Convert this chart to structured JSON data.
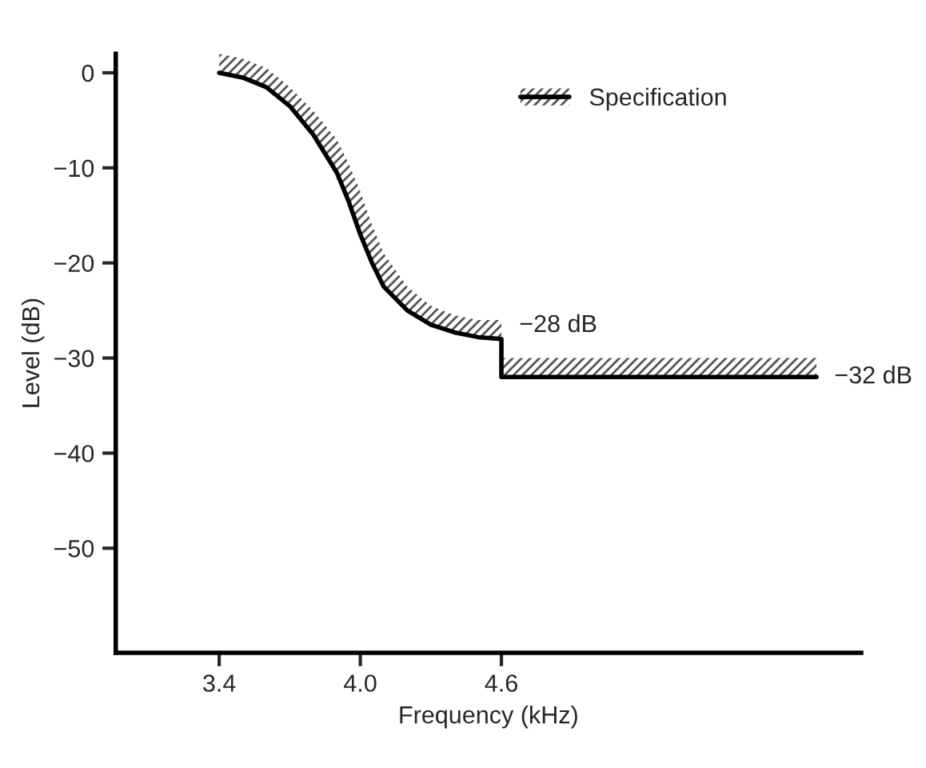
{
  "chart_data": {
    "type": "line",
    "xlabel": "Frequency (kHz)",
    "ylabel": "Level (dB)",
    "x": [
      3.4,
      3.5,
      3.6,
      3.7,
      3.8,
      3.9,
      3.95,
      4.0,
      4.05,
      4.1,
      4.2,
      4.3,
      4.4,
      4.5,
      4.6,
      4.6,
      5.94
    ],
    "series": [
      {
        "name": "Specification",
        "color": "#000000",
        "values": [
          0,
          -0.5,
          -1.5,
          -3.5,
          -6.5,
          -10.5,
          -13.5,
          -17,
          -20,
          -22.5,
          -25,
          -26.5,
          -27.3,
          -27.8,
          -28,
          -32,
          -32
        ],
        "lower": [
          0,
          -0.5,
          -1.5,
          -3.5,
          -6.5,
          -10.5,
          -13.5,
          -17,
          -20,
          -22.5,
          -25,
          -26.5,
          -27.3,
          -27.8,
          -28,
          -32,
          -32
        ],
        "upper": [
          2,
          1.5,
          0.5,
          -1.5,
          -4,
          -7,
          -9.5,
          -12.5,
          -16,
          -19,
          -22.5,
          -24.5,
          -25.5,
          -26,
          -26,
          -30,
          -30
        ]
      }
    ],
    "annotations": [
      {
        "text": "−28 dB",
        "x": 4.6,
        "y": -28
      },
      {
        "text": "−32 dB",
        "x": 5.94,
        "y": -32
      }
    ],
    "xlim": [
      2.96,
      6.13
    ],
    "ylim": [
      -61,
      2
    ],
    "xticks": [
      {
        "value": 3.4,
        "label": "3.4"
      },
      {
        "value": 4.0,
        "label": "4.0"
      },
      {
        "value": 4.6,
        "label": "4.6"
      }
    ],
    "yticks": [
      {
        "value": 0,
        "label": "0"
      },
      {
        "value": -10,
        "label": "−10"
      },
      {
        "value": -20,
        "label": "−20"
      },
      {
        "value": -30,
        "label": "−30"
      },
      {
        "value": -40,
        "label": "−40"
      },
      {
        "value": -50,
        "label": "−50"
      }
    ],
    "legend": "top right",
    "grid": false,
    "line_style": "solid",
    "marker": "none"
  }
}
